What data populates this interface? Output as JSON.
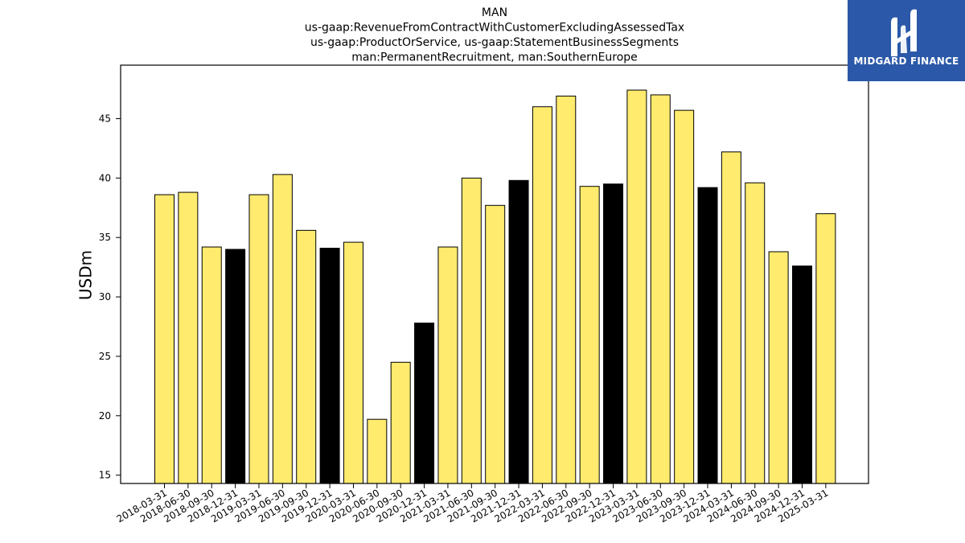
{
  "chart_data": {
    "type": "bar",
    "title": [
      "MAN",
      "us-gaap:RevenueFromContractWithCustomerExcludingAssessedTax",
      "us-gaap:ProductOrService, us-gaap:StatementBusinessSegments",
      "man:PermanentRecruitment, man:SouthernEurope"
    ],
    "ylabel": "USDm",
    "ylim": [
      14.3,
      49.5
    ],
    "yticks": [
      15,
      20,
      25,
      30,
      35,
      40,
      45
    ],
    "categories": [
      "2018-03-31",
      "2018-06-30",
      "2018-09-30",
      "2018-12-31",
      "2019-03-31",
      "2019-06-30",
      "2019-09-30",
      "2019-12-31",
      "2020-03-31",
      "2020-06-30",
      "2020-09-30",
      "2020-12-31",
      "2021-03-31",
      "2021-06-30",
      "2021-09-30",
      "2021-12-31",
      "2022-03-31",
      "2022-06-30",
      "2022-09-30",
      "2022-12-31",
      "2023-03-31",
      "2023-06-30",
      "2023-09-30",
      "2023-12-31",
      "2024-03-31",
      "2024-06-30",
      "2024-09-30",
      "2024-12-31",
      "2025-03-31"
    ],
    "values": [
      38.6,
      38.8,
      34.2,
      34.0,
      38.6,
      40.3,
      35.6,
      34.1,
      34.6,
      19.7,
      24.5,
      27.8,
      34.2,
      40.0,
      37.7,
      39.8,
      46.0,
      46.9,
      39.3,
      39.5,
      47.4,
      47.0,
      45.7,
      39.2,
      42.2,
      39.6,
      33.8,
      32.6,
      37.0
    ],
    "colors": {
      "quarter": "#ffeb6e",
      "year_end": "#000000",
      "edge": "#000000"
    },
    "year_end_suffix": "12-31"
  },
  "logo": {
    "text": "MIDGARD FINANCE",
    "background": "#2b58a8"
  }
}
